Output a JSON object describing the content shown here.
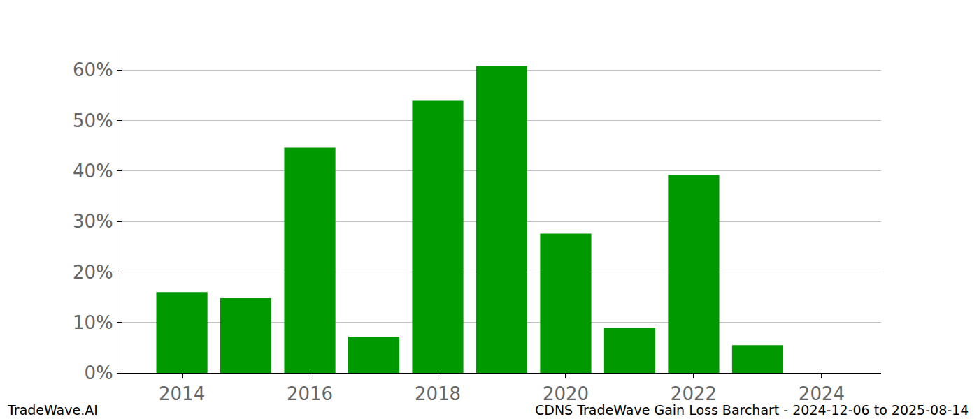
{
  "chart_data": {
    "type": "bar",
    "title": "CDNS TradeWave Gain Loss Barchart - 2024-12-06 to 2025-08-14",
    "annotations": [
      "TradeWave.AI"
    ],
    "x": [
      2014,
      2015,
      2016,
      2017,
      2018,
      2019,
      2020,
      2021,
      2022,
      2023
    ],
    "values": [
      16.0,
      14.8,
      44.6,
      7.2,
      54.0,
      60.8,
      27.6,
      9.0,
      39.2,
      5.5
    ],
    "color": "#009900",
    "xlim": [
      2013.07,
      2024.93
    ],
    "xticks": [
      2014,
      2016,
      2018,
      2020,
      2022,
      2024
    ],
    "ylim": [
      0,
      63.9
    ],
    "yticks": [
      {
        "value": 0,
        "label": "0%"
      },
      {
        "value": 10,
        "label": "10%"
      },
      {
        "value": 20,
        "label": "20%"
      },
      {
        "value": 30,
        "label": "30%"
      },
      {
        "value": 40,
        "label": "40%"
      },
      {
        "value": 50,
        "label": "50%"
      },
      {
        "value": 60,
        "label": "60%"
      }
    ],
    "grid": true
  }
}
